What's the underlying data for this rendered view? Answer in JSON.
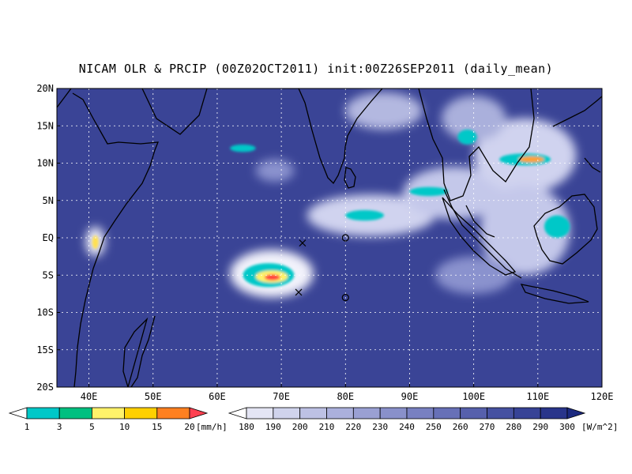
{
  "title": "NICAM OLR & PRCIP (00Z02OCT2011) init:00Z26SEP2011 (daily_mean)",
  "map": {
    "lon_range": [
      35,
      120
    ],
    "lat_range": [
      -20,
      20
    ],
    "lon_ticks": [
      {
        "value": 40,
        "label": "40E"
      },
      {
        "value": 50,
        "label": "50E"
      },
      {
        "value": 60,
        "label": "60E"
      },
      {
        "value": 70,
        "label": "70E"
      },
      {
        "value": 80,
        "label": "80E"
      },
      {
        "value": 90,
        "label": "90E"
      },
      {
        "value": 100,
        "label": "100E"
      },
      {
        "value": 110,
        "label": "110E"
      },
      {
        "value": 120,
        "label": "120E"
      }
    ],
    "lat_ticks": [
      {
        "value": 20,
        "label": "20N"
      },
      {
        "value": 15,
        "label": "15N"
      },
      {
        "value": 10,
        "label": "10N"
      },
      {
        "value": 5,
        "label": "5N"
      },
      {
        "value": 0,
        "label": "EQ"
      },
      {
        "value": -5,
        "label": "5S"
      },
      {
        "value": -10,
        "label": "10S"
      },
      {
        "value": -15,
        "label": "15S"
      },
      {
        "value": -20,
        "label": "20S"
      }
    ],
    "grid": true,
    "background_color": "#3a4496",
    "markers": [
      {
        "symbol": "x",
        "lon": 73.3,
        "lat": -0.7
      },
      {
        "symbol": "x",
        "lon": 72.7,
        "lat": -7.3
      },
      {
        "symbol": "o",
        "lon": 80.0,
        "lat": 0.0
      },
      {
        "symbol": "o",
        "lon": 80.0,
        "lat": -8.0
      }
    ],
    "cloud_features": [
      {
        "lon": 68.5,
        "lat": -4.8,
        "rx": 6.5,
        "ry": 3.2,
        "color": "#f2f2fb"
      },
      {
        "lon": 84,
        "lat": 3,
        "rx": 10,
        "ry": 2.8,
        "color": "#d0d3ef"
      },
      {
        "lon": 97,
        "lat": 6,
        "rx": 8,
        "ry": 3.5,
        "color": "#c4c8ea"
      },
      {
        "lon": 108,
        "lat": 11,
        "rx": 8,
        "ry": 5,
        "color": "#d0d3ef"
      },
      {
        "lon": 108,
        "lat": 1,
        "rx": 7,
        "ry": 6,
        "color": "#c4c8ea"
      },
      {
        "lon": 86,
        "lat": 17,
        "rx": 6,
        "ry": 2.5,
        "color": "#b3b8e0"
      },
      {
        "lon": 100,
        "lat": 16,
        "rx": 5,
        "ry": 3,
        "color": "#aab0dc"
      },
      {
        "lon": 69,
        "lat": 9,
        "rx": 3,
        "ry": 1.5,
        "color": "#8a92ce"
      },
      {
        "lon": 41,
        "lat": -0.5,
        "rx": 1.5,
        "ry": 2,
        "color": "#e8e9f7"
      },
      {
        "lon": 100,
        "lat": -5,
        "rx": 6,
        "ry": 2.5,
        "color": "#8a92ce"
      }
    ],
    "precip_features": [
      {
        "lon": 68,
        "lat": -5,
        "rx": 4,
        "ry": 1.6,
        "color": "#00c8c8"
      },
      {
        "lon": 68.5,
        "lat": -5.2,
        "rx": 2.5,
        "ry": 0.8,
        "color": "#fff26a"
      },
      {
        "lon": 68.6,
        "lat": -5.3,
        "rx": 1.2,
        "ry": 0.4,
        "color": "#ff4040"
      },
      {
        "lon": 108,
        "lat": 10.5,
        "rx": 4,
        "ry": 0.8,
        "color": "#00c8c8"
      },
      {
        "lon": 109,
        "lat": 10.5,
        "rx": 2,
        "ry": 0.4,
        "color": "#ffa030"
      },
      {
        "lon": 83,
        "lat": 3,
        "rx": 3,
        "ry": 0.7,
        "color": "#00c8c8"
      },
      {
        "lon": 93,
        "lat": 6.2,
        "rx": 3,
        "ry": 0.6,
        "color": "#00c8c8"
      },
      {
        "lon": 41,
        "lat": -0.6,
        "rx": 0.5,
        "ry": 0.9,
        "color": "#ffe050"
      },
      {
        "lon": 113,
        "lat": 1.5,
        "rx": 2,
        "ry": 1.5,
        "color": "#00c8c8"
      },
      {
        "lon": 64,
        "lat": 12,
        "rx": 2,
        "ry": 0.5,
        "color": "#00c8c8"
      },
      {
        "lon": 99,
        "lat": 13.5,
        "rx": 1.5,
        "ry": 1,
        "color": "#00c8c8"
      }
    ]
  },
  "precip_colorbar": {
    "levels": [
      "1",
      "3",
      "5",
      "10",
      "15",
      "20"
    ],
    "colors": [
      "#ffffff",
      "#00c8c8",
      "#00c080",
      "#fff26a",
      "#ffd000",
      "#ff8020",
      "#ff4050"
    ],
    "unit": "[mm/h]"
  },
  "olr_colorbar": {
    "levels": [
      "180",
      "190",
      "200",
      "210",
      "220",
      "230",
      "240",
      "250",
      "260",
      "270",
      "280",
      "290",
      "300"
    ],
    "colors": [
      "#ffffff",
      "#e4e5f4",
      "#d0d3ec",
      "#bdc1e4",
      "#abb0dc",
      "#9aa0d3",
      "#8990ca",
      "#7880c1",
      "#6770b7",
      "#5660ac",
      "#4651a1",
      "#374396",
      "#29358b",
      "#1c2a80"
    ],
    "unit": "[W/m^2]"
  },
  "coastline_color": "#000000",
  "grid_color": "#ffffff"
}
